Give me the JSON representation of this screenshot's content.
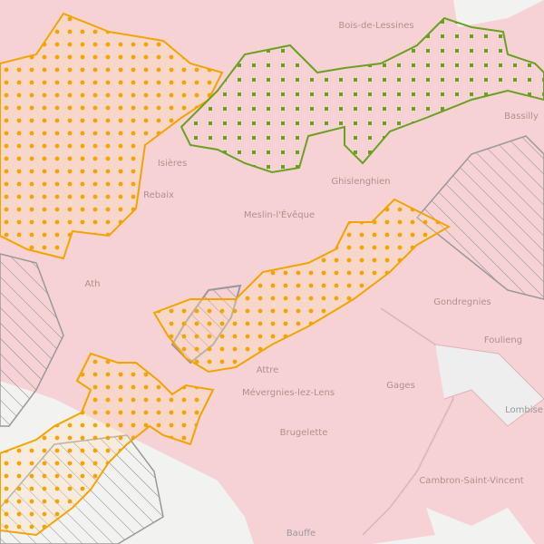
{
  "map": {
    "labels": [
      "Bois-de-Lessines",
      "Isières",
      "Rebaix",
      "Ghislenghien",
      "Meslin-l'Évêque",
      "Ath",
      "Bassilly",
      "Gondregnies",
      "Foulieng",
      "Attre",
      "Mévergnies-lez-Lens",
      "Gages",
      "Brugelette",
      "Lombise",
      "Cambron-Saint-Vincent",
      "Bauffe"
    ]
  }
}
